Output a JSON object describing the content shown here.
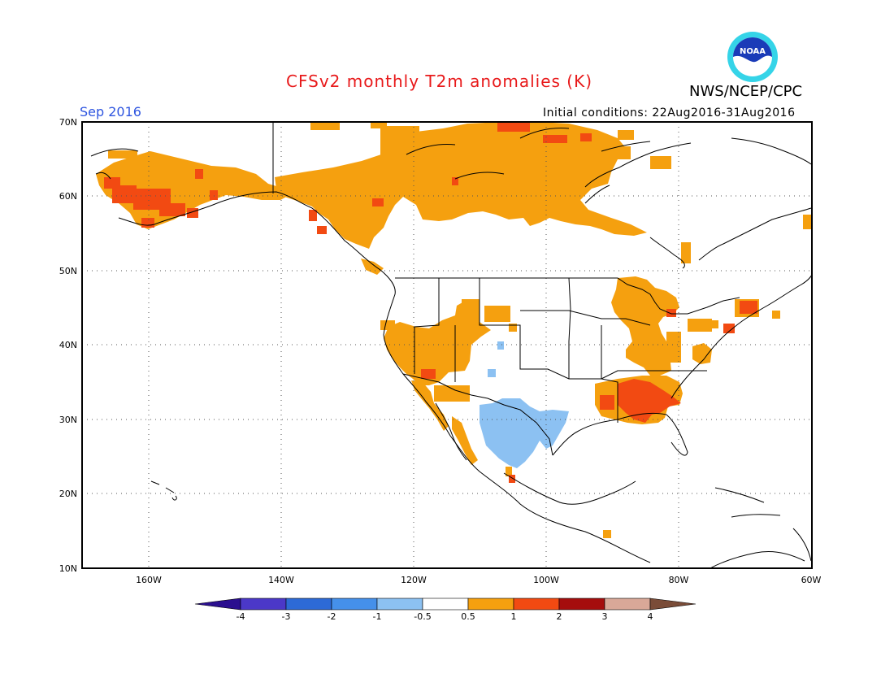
{
  "header": {
    "title": "CFSv2 monthly T2m anomalies (K)",
    "agency": "NWS/NCEP/CPC",
    "logo_text": "NOAA",
    "valid_month": "Sep 2016",
    "initial_conditions": "Initial conditions: 22Aug2016-31Aug2016"
  },
  "map": {
    "region": "North America",
    "lat_range": [
      10,
      70
    ],
    "lon_range": [
      -170,
      -60
    ],
    "lat_labels": [
      "70N",
      "60N",
      "50N",
      "40N",
      "30N",
      "20N",
      "10N"
    ],
    "lon_labels": [
      "160W",
      "140W",
      "120W",
      "100W",
      "80W",
      "60W"
    ],
    "grid": "dotted"
  },
  "colorbar": {
    "tick_labels": [
      "-4",
      "-3",
      "-2",
      "-1",
      "-0.5",
      "0.5",
      "1",
      "2",
      "3",
      "4"
    ],
    "colors": [
      "#2b0f8f",
      "#4b38c8",
      "#2d6ad6",
      "#4590ea",
      "#8cc1f2",
      "#ffffff",
      "#f5a00f",
      "#f24a12",
      "#a50d0d",
      "#d9a898",
      "#7a4c38"
    ]
  },
  "anomaly_regions": [
    {
      "name": "Alaska",
      "category": "0.5 to 1"
    },
    {
      "name": "Southwest Alaska",
      "category": "1 to 2"
    },
    {
      "name": "Northern Canada",
      "category": "0.5 to 1"
    },
    {
      "name": "Western US",
      "category": "0.5 to 1"
    },
    {
      "name": "Southeast US",
      "category": "1 to 2"
    },
    {
      "name": "Great Lakes",
      "category": "0.5 to 1"
    },
    {
      "name": "Northeast US",
      "category": "1 to 2"
    },
    {
      "name": "Texas and Northern Mexico",
      "category": "-1 to -0.5"
    }
  ]
}
